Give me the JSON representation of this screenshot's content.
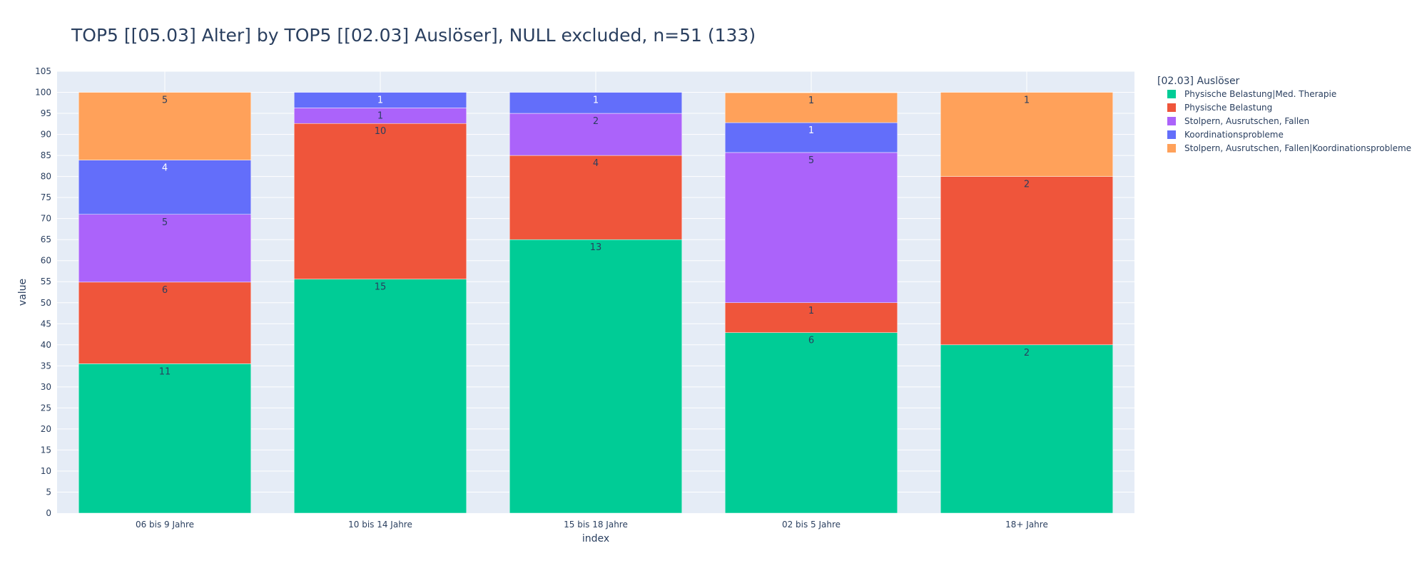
{
  "chart_data": {
    "type": "bar",
    "barmode": "stack",
    "title": "TOP5 [[05.03] Alter] by TOP5 [[02.03] Auslöser], NULL excluded, n=51 (133)",
    "xlabel": "index",
    "ylabel": "value",
    "ylim": [
      0,
      105
    ],
    "ytick_step": 5,
    "grid": true,
    "legend_position": "right",
    "legend_title": "[02.03] Auslöser",
    "categories": [
      "06 bis 9 Jahre",
      "10 bis 14 Jahre",
      "15 bis 18 Jahre",
      "02 bis 5 Jahre",
      "18+ Jahre"
    ],
    "series": [
      {
        "name": "Physische Belastung|Med. Therapie",
        "color": "#00cc96",
        "values": [
          35.5,
          55.6,
          65.0,
          42.9,
          40.0
        ],
        "labels": [
          "11",
          "15",
          "13",
          "6",
          "2"
        ],
        "label_color": "#2a3f5f"
      },
      {
        "name": "Physische Belastung",
        "color": "#ef553b",
        "values": [
          19.4,
          37.0,
          20.0,
          7.1,
          40.0
        ],
        "labels": [
          "6",
          "10",
          "4",
          "1",
          "2"
        ],
        "label_color": "#2a3f5f"
      },
      {
        "name": "Stolpern, Ausrutschen, Fallen",
        "color": "#ab63fa",
        "values": [
          16.1,
          3.7,
          10.0,
          35.7,
          0
        ],
        "labels": [
          "5",
          "1",
          "2",
          "5",
          ""
        ],
        "label_color": "#2a3f5f"
      },
      {
        "name": "Koordinationsprobleme",
        "color": "#636efa",
        "values": [
          12.9,
          3.7,
          5.0,
          7.1,
          0
        ],
        "labels": [
          "4",
          "1",
          "1",
          "1",
          ""
        ],
        "label_color": "#ffffff"
      },
      {
        "name": "Stolpern, Ausrutschen, Fallen|Koordinationsprobleme",
        "color": "#ffa15a",
        "values": [
          16.1,
          0,
          0,
          7.1,
          20.0
        ],
        "labels": [
          "5",
          "",
          "",
          "1",
          "1"
        ],
        "label_color": "#2a3f5f"
      }
    ]
  },
  "colors": {
    "plot_background": "#e5ecf6",
    "grid": "#ffffff",
    "text": "#2a3f5f"
  }
}
